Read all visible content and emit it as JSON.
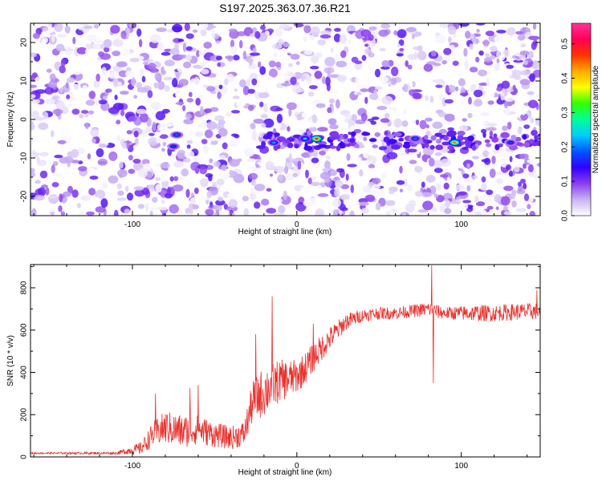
{
  "chart_data": [
    {
      "type": "heatmap",
      "title": "S197.2025.363.07.36.R21",
      "xlabel": "Height of straight line (km)",
      "ylabel": "Frequency (Hz)",
      "xlim": [
        -162,
        148
      ],
      "ylim": [
        -25,
        25
      ],
      "xticks": [
        -100,
        0,
        100
      ],
      "xtick_labels": [
        "-100",
        "0",
        "100"
      ],
      "yticks": [
        -20,
        -10,
        0,
        10,
        20
      ],
      "ytick_labels": [
        "-20",
        "-10",
        "0",
        "10",
        "20"
      ],
      "colorbar": {
        "label": "Normalized spectral amplitude",
        "range": [
          0.0,
          0.56
        ],
        "ticks": [
          0.0,
          0.1,
          0.2,
          0.3,
          0.4,
          0.5
        ],
        "tick_labels": [
          "0.0",
          "0.1",
          "0.2",
          "0.3",
          "0.4",
          "0.5"
        ],
        "colors": [
          "#ffffff",
          "#c9b3f2",
          "#8a3df0",
          "#3300ff",
          "#0055ff",
          "#00ccff",
          "#00ff99",
          "#33ff00",
          "#ffff00",
          "#ffaa00",
          "#ff3300",
          "#ff0055",
          "#ff3399"
        ]
      },
      "features": {
        "background_amplitude": 0.08,
        "signal_band_frequency_hz": -5.5,
        "signal_band_x_range": [
          -22,
          148
        ],
        "peaks": [
          {
            "x": 12,
            "y": -5,
            "value": 0.52
          },
          {
            "x": 96,
            "y": -6,
            "value": 0.45
          },
          {
            "x": 5,
            "y": -5,
            "value": 0.25
          },
          {
            "x": -14,
            "y": -6,
            "value": 0.22
          },
          {
            "x": -73,
            "y": -4,
            "value": 0.2
          },
          {
            "x": -75,
            "y": -7,
            "value": 0.18
          },
          {
            "x": 72,
            "y": -5,
            "value": 0.2
          },
          {
            "x": 130,
            "y": -6,
            "value": 0.18
          }
        ]
      }
    },
    {
      "type": "line",
      "title": "",
      "xlabel": "Height of straight line (km)",
      "ylabel": "SNR (10 * v/v)",
      "xlim": [
        -162,
        148
      ],
      "ylim": [
        0,
        910
      ],
      "xticks": [
        -100,
        0,
        100
      ],
      "xtick_labels": [
        "-100",
        "0",
        "100"
      ],
      "yticks": [
        0,
        200,
        400,
        600,
        800
      ],
      "ytick_labels": [
        "0",
        "200",
        "400",
        "600",
        "800"
      ],
      "series": [
        {
          "name": "SNR",
          "color": "#e8302a",
          "envelope_x": [
            -162,
            -110,
            -95,
            -87,
            -80,
            -70,
            -60,
            -50,
            -40,
            -32,
            -27,
            -20,
            -15,
            -10,
            0,
            5,
            10,
            20,
            30,
            40,
            50,
            60,
            70,
            80,
            84,
            90,
            100,
            110,
            120,
            130,
            148
          ],
          "envelope_y": [
            18,
            18,
            40,
            110,
            140,
            120,
            130,
            105,
            90,
            110,
            260,
            310,
            340,
            360,
            380,
            420,
            470,
            560,
            640,
            670,
            680,
            680,
            690,
            700,
            690,
            680,
            680,
            680,
            680,
            685,
            690
          ],
          "noise_amplitude": [
            4,
            6,
            30,
            60,
            80,
            80,
            70,
            60,
            55,
            60,
            100,
            120,
            110,
            100,
            80,
            75,
            70,
            55,
            40,
            30,
            30,
            30,
            30,
            35,
            35,
            30,
            35,
            40,
            40,
            40,
            40
          ],
          "spikes": [
            {
              "x": -15,
              "value": 760
            },
            {
              "x": 82,
              "value": 905
            },
            {
              "x": 83,
              "value": 350
            },
            {
              "x": -86,
              "value": 300
            },
            {
              "x": -60,
              "value": 340
            },
            {
              "x": -65,
              "value": 325
            },
            {
              "x": -25,
              "value": 580
            },
            {
              "x": 10,
              "value": 630
            },
            {
              "x": 146,
              "value": 790
            }
          ]
        }
      ]
    }
  ]
}
